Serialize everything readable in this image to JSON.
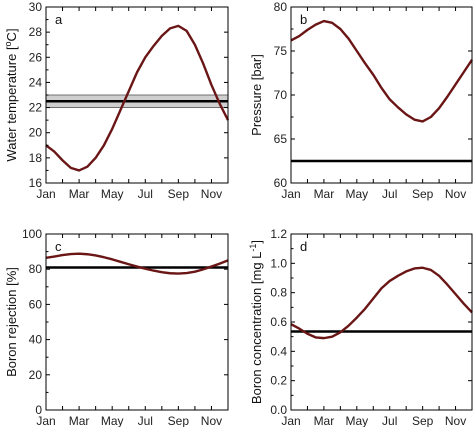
{
  "colors": {
    "curve": "#6b1616",
    "reference": "#000000",
    "band": "#cfcfcf"
  },
  "chart_data": [
    {
      "type": "line",
      "panel": "a",
      "ylabel_main": "Water temperature [",
      "ylabel_sup": "o",
      "ylabel_tail": "C]",
      "ylim": [
        16,
        30
      ],
      "yticks": [
        "16",
        "18",
        "20",
        "22",
        "24",
        "26",
        "28",
        "30"
      ],
      "xticks": [
        "Jan",
        "Mar",
        "May",
        "Jul",
        "Sep",
        "Nov"
      ],
      "xlim": [
        1,
        12
      ],
      "grid": false,
      "series": [
        {
          "x": [
            1,
            1.5,
            2,
            2.5,
            3,
            3.5,
            4,
            4.5,
            5,
            5.5,
            6,
            6.5,
            7,
            7.5,
            8,
            8.5,
            9,
            9.5,
            10,
            10.5,
            11,
            11.5,
            12
          ],
          "values": [
            19.0,
            18.5,
            17.8,
            17.2,
            17.0,
            17.3,
            18.0,
            19.0,
            20.3,
            21.8,
            23.3,
            24.8,
            26.0,
            26.9,
            27.7,
            28.3,
            28.5,
            28.1,
            27.0,
            25.5,
            23.8,
            22.3,
            21.0
          ]
        }
      ],
      "reference_line": 22.5,
      "reference_band": [
        22.0,
        23.0
      ]
    },
    {
      "type": "line",
      "panel": "b",
      "ylabel_main": "Pressure [bar]",
      "ylabel_sup": "",
      "ylabel_tail": "",
      "ylim": [
        60,
        80
      ],
      "yticks": [
        "60",
        "65",
        "70",
        "75",
        "80"
      ],
      "xticks": [
        "Jan",
        "Mar",
        "May",
        "Jul",
        "Sep",
        "Nov"
      ],
      "xlim": [
        1,
        12
      ],
      "grid": false,
      "series": [
        {
          "x": [
            1,
            1.5,
            2,
            2.5,
            3,
            3.5,
            4,
            4.5,
            5,
            5.5,
            6,
            6.5,
            7,
            7.5,
            8,
            8.5,
            9,
            9.5,
            10,
            10.5,
            11,
            11.5,
            12
          ],
          "values": [
            76.2,
            76.7,
            77.4,
            78.0,
            78.4,
            78.2,
            77.5,
            76.4,
            75.0,
            73.6,
            72.3,
            70.8,
            69.5,
            68.6,
            67.8,
            67.2,
            67.0,
            67.5,
            68.5,
            69.8,
            71.2,
            72.6,
            74.0
          ]
        }
      ],
      "reference_line": 62.5
    },
    {
      "type": "line",
      "panel": "c",
      "ylabel_main": "Boron rejection [%]",
      "ylabel_sup": "",
      "ylabel_tail": "",
      "ylim": [
        0,
        100
      ],
      "yticks": [
        "0",
        "20",
        "40",
        "60",
        "80",
        "100"
      ],
      "xticks": [
        "Jan",
        "Mar",
        "May",
        "Jul",
        "Sep",
        "Nov"
      ],
      "xlim": [
        1,
        12
      ],
      "grid": false,
      "series": [
        {
          "x": [
            1,
            1.5,
            2,
            2.5,
            3,
            3.5,
            4,
            4.5,
            5,
            5.5,
            6,
            6.5,
            7,
            7.5,
            8,
            8.5,
            9,
            9.5,
            10,
            10.5,
            11,
            11.5,
            12
          ],
          "values": [
            86.5,
            87.2,
            88.0,
            88.6,
            88.8,
            88.5,
            87.8,
            86.8,
            85.6,
            84.2,
            82.8,
            81.5,
            80.3,
            79.2,
            78.3,
            77.7,
            77.5,
            77.8,
            78.6,
            79.9,
            81.5,
            83.2,
            85.0
          ]
        }
      ],
      "reference_line": 81.0
    },
    {
      "type": "line",
      "panel": "d",
      "ylabel_main": "Boron concentration [mg L",
      "ylabel_sup": "-1",
      "ylabel_tail": "]",
      "ylim": [
        0,
        1.2
      ],
      "yticks": [
        "0.0",
        "0.2",
        "0.4",
        "0.6",
        "0.8",
        "1.0",
        "1.2"
      ],
      "xticks": [
        "Jan",
        "Mar",
        "May",
        "Jul",
        "Sep",
        "Nov"
      ],
      "xlim": [
        1,
        12
      ],
      "grid": false,
      "series": [
        {
          "x": [
            1,
            1.5,
            2,
            2.5,
            3,
            3.5,
            4,
            4.5,
            5,
            5.5,
            6,
            6.5,
            7,
            7.5,
            8,
            8.5,
            9,
            9.5,
            10,
            10.5,
            11,
            11.5,
            12
          ],
          "values": [
            0.585,
            0.555,
            0.52,
            0.495,
            0.49,
            0.5,
            0.53,
            0.575,
            0.63,
            0.69,
            0.76,
            0.83,
            0.88,
            0.915,
            0.945,
            0.965,
            0.97,
            0.955,
            0.915,
            0.855,
            0.79,
            0.725,
            0.665
          ]
        }
      ],
      "reference_line": 0.535
    }
  ]
}
